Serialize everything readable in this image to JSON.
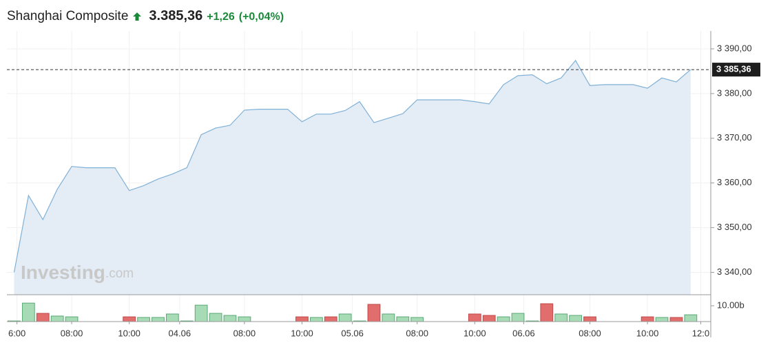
{
  "chart_data": [
    {
      "type": "line",
      "title": "Shanghai Composite",
      "price": "3.385,36",
      "change": "+1,26",
      "change_percent": "(+0,04%)",
      "color": "#7fb0d6",
      "fill": "#e4edf6",
      "change_color": "#1a8a3a",
      "x": [
        0,
        1,
        2,
        3,
        4,
        5,
        6,
        7,
        8,
        9,
        10,
        11,
        12,
        13,
        14,
        15,
        16,
        17,
        18,
        19,
        20,
        21,
        22,
        23,
        24,
        25,
        26,
        27,
        28,
        29,
        30,
        31,
        32,
        33,
        34,
        35,
        36,
        37,
        38,
        39,
        40,
        41,
        42,
        43,
        44,
        45,
        46,
        47
      ],
      "values": [
        3340.0,
        3357.2,
        3351.8,
        3358.6,
        3363.7,
        3363.4,
        3363.4,
        3363.4,
        3358.3,
        3359.4,
        3360.9,
        3362.0,
        3363.4,
        3370.8,
        3372.3,
        3372.9,
        3376.3,
        3376.5,
        3376.5,
        3376.5,
        3373.7,
        3375.4,
        3375.4,
        3376.2,
        3378.2,
        3373.5,
        3374.5,
        3375.5,
        3378.6,
        3378.6,
        3378.6,
        3378.6,
        3378.2,
        3377.7,
        3382.0,
        3384.0,
        3384.2,
        3382.2,
        3383.5,
        3387.4,
        3381.8,
        3382.0,
        3382.0,
        3382.0,
        3381.2,
        3383.5,
        3382.6,
        3385.36
      ],
      "current": {
        "value": 3385.36,
        "label": "3 385,36"
      },
      "xlim": [
        -0.5,
        48.3
      ],
      "ylim": [
        3335,
        3394
      ],
      "yticks": [
        {
          "value": 3340,
          "label": "3 340,00"
        },
        {
          "value": 3350,
          "label": "3 350,00"
        },
        {
          "value": 3360,
          "label": "3 360,00"
        },
        {
          "value": 3370,
          "label": "3 370,00"
        },
        {
          "value": 3380,
          "label": "3 380,00"
        },
        {
          "value": 3390,
          "label": "3 390,00"
        }
      ],
      "grid": true,
      "watermark": "Investing",
      "watermark_suffix": ".com"
    },
    {
      "type": "bar",
      "x": [
        0,
        1,
        2,
        3,
        4,
        5,
        6,
        7,
        8,
        9,
        10,
        11,
        12,
        13,
        14,
        15,
        16,
        17,
        18,
        19,
        20,
        21,
        22,
        23,
        24,
        25,
        26,
        27,
        28,
        29,
        30,
        31,
        32,
        33,
        34,
        35,
        36,
        37,
        38,
        39,
        40,
        41,
        42,
        43,
        44,
        45,
        46,
        47
      ],
      "values": [
        0.4,
        11.7,
        5.2,
        3.5,
        3.0,
        null,
        null,
        null,
        3.0,
        2.6,
        2.6,
        4.8,
        0.4,
        10.4,
        5.2,
        3.9,
        3.0,
        null,
        null,
        null,
        3.0,
        2.6,
        3.0,
        4.8,
        0.4,
        10.9,
        4.8,
        3.0,
        2.6,
        null,
        null,
        null,
        4.8,
        3.9,
        3.0,
        5.2,
        0.4,
        11.3,
        4.8,
        3.9,
        3.0,
        null,
        null,
        null,
        3.0,
        2.6,
        2.6,
        4.3
      ],
      "colors": [
        "#a6dbb5",
        "#a6dbb5",
        "#e26d6d",
        "#a6dbb5",
        "#a6dbb5",
        null,
        null,
        null,
        "#e26d6d",
        "#a6dbb5",
        "#a6dbb5",
        "#a6dbb5",
        "#a6dbb5",
        "#a6dbb5",
        "#a6dbb5",
        "#a6dbb5",
        "#a6dbb5",
        null,
        null,
        null,
        "#e26d6d",
        "#a6dbb5",
        "#e26d6d",
        "#a6dbb5",
        "#a6dbb5",
        "#e26d6d",
        "#a6dbb5",
        "#a6dbb5",
        "#a6dbb5",
        null,
        null,
        null,
        "#e26d6d",
        "#e26d6d",
        "#a6dbb5",
        "#a6dbb5",
        "#a6dbb5",
        "#e26d6d",
        "#a6dbb5",
        "#a6dbb5",
        "#e26d6d",
        null,
        null,
        null,
        "#e26d6d",
        "#a6dbb5",
        "#e26d6d",
        "#a6dbb5"
      ],
      "xlim": [
        -0.5,
        48.3
      ],
      "ylim": [
        0,
        17
      ],
      "yticks": [
        {
          "value": 10,
          "label": "10.00b"
        }
      ],
      "xticks": [
        {
          "value": 0.2,
          "label": "6:00"
        },
        {
          "value": 4,
          "label": "08:00"
        },
        {
          "value": 8,
          "label": "10:00"
        },
        {
          "value": 11.5,
          "label": "04.06"
        },
        {
          "value": 16,
          "label": "08:00"
        },
        {
          "value": 20,
          "label": "10:00"
        },
        {
          "value": 23.5,
          "label": "05.06"
        },
        {
          "value": 28,
          "label": "08:00"
        },
        {
          "value": 32,
          "label": "10:00"
        },
        {
          "value": 35.4,
          "label": "06.06"
        },
        {
          "value": 40,
          "label": "08:00"
        },
        {
          "value": 44,
          "label": "10:00"
        },
        {
          "value": 47.7,
          "label": "12:0"
        }
      ]
    }
  ]
}
